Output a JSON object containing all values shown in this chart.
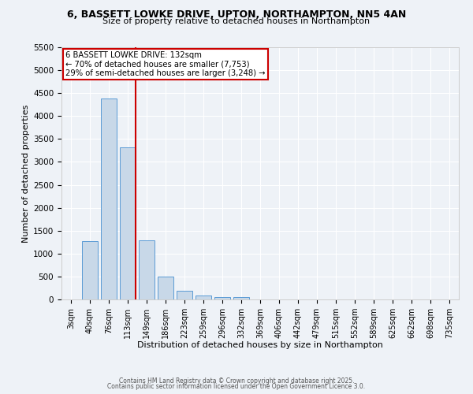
{
  "title_line1": "6, BASSETT LOWKE DRIVE, UPTON, NORTHAMPTON, NN5 4AN",
  "title_line2": "Size of property relative to detached houses in Northampton",
  "xlabel": "Distribution of detached houses by size in Northampton",
  "ylabel": "Number of detached properties",
  "bar_labels": [
    "3sqm",
    "40sqm",
    "76sqm",
    "113sqm",
    "149sqm",
    "186sqm",
    "223sqm",
    "259sqm",
    "296sqm",
    "332sqm",
    "369sqm",
    "406sqm",
    "442sqm",
    "479sqm",
    "515sqm",
    "552sqm",
    "589sqm",
    "625sqm",
    "662sqm",
    "698sqm",
    "735sqm"
  ],
  "bar_values": [
    0,
    1270,
    4380,
    3310,
    1290,
    490,
    195,
    80,
    55,
    55,
    0,
    0,
    0,
    0,
    0,
    0,
    0,
    0,
    0,
    0,
    0
  ],
  "bar_color": "#c8d8e8",
  "bar_edge_color": "#5b9bd5",
  "property_line_color": "#cc0000",
  "annotation_text": "6 BASSETT LOWKE DRIVE: 132sqm\n← 70% of detached houses are smaller (7,753)\n29% of semi-detached houses are larger (3,248) →",
  "annotation_box_color": "white",
  "annotation_box_edge_color": "#cc0000",
  "ylim": [
    0,
    5500
  ],
  "yticks": [
    0,
    500,
    1000,
    1500,
    2000,
    2500,
    3000,
    3500,
    4000,
    4500,
    5000,
    5500
  ],
  "footer_line1": "Contains HM Land Registry data © Crown copyright and database right 2025.",
  "footer_line2": "Contains public sector information licensed under the Open Government Licence 3.0.",
  "bg_color": "#eef2f7",
  "grid_color": "#ffffff",
  "property_line_xindex": 3.43
}
